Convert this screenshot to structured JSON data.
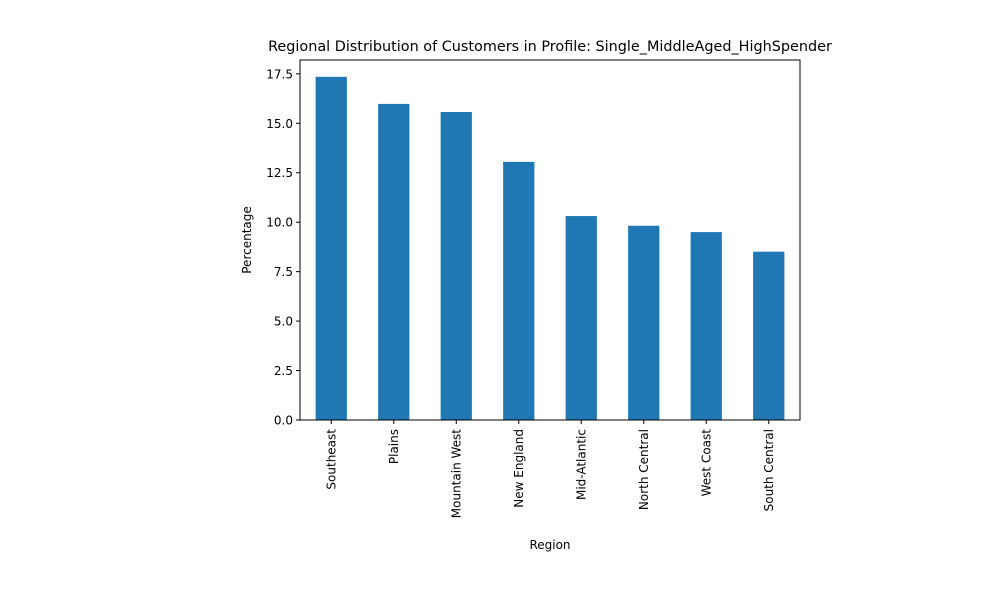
{
  "chart_data": {
    "type": "bar",
    "title": "Regional Distribution of Customers in Profile: Single_MiddleAged_HighSpender",
    "xlabel": "Region",
    "ylabel": "Percentage",
    "categories": [
      "Southeast",
      "Plains",
      "Mountain West",
      "New England",
      "Mid-Atlantic",
      "North Central",
      "West Coast",
      "South Central"
    ],
    "values": [
      17.35,
      15.98,
      15.57,
      13.05,
      10.31,
      9.82,
      9.5,
      8.51
    ],
    "ylim": [
      0,
      18.2
    ],
    "yticks": [
      0.0,
      2.5,
      5.0,
      7.5,
      10.0,
      12.5,
      15.0,
      17.5
    ],
    "ytick_labels": [
      "0.0",
      "2.5",
      "5.0",
      "7.5",
      "10.0",
      "12.5",
      "15.0",
      "17.5"
    ],
    "bar_color": "#1f77b4",
    "grid": false,
    "legend": "none"
  }
}
